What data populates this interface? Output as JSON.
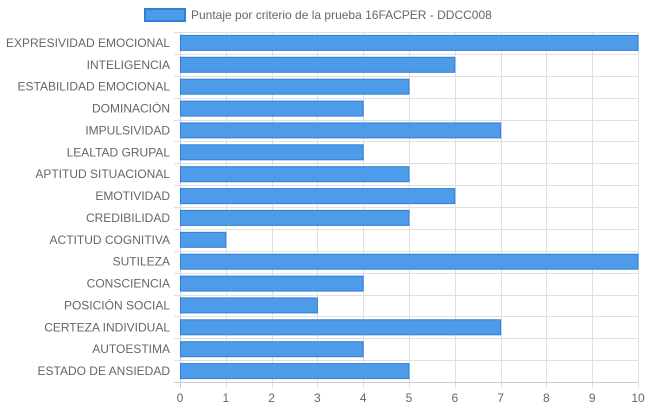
{
  "chart_data": {
    "type": "bar",
    "orientation": "horizontal",
    "title": "",
    "xlabel": "",
    "ylabel": "",
    "xlim": [
      0,
      10
    ],
    "x_ticks": [
      0,
      1,
      2,
      3,
      4,
      5,
      6,
      7,
      8,
      9,
      10
    ],
    "grid": true,
    "legend_position": "top",
    "categories": [
      "EXPRESIVIDAD EMOCIONAL",
      "INTELIGENCIA",
      "ESTABILIDAD EMOCIONAL",
      "DOMINACIÓN",
      "IMPULSIVIDAD",
      "LEALTAD GRUPAL",
      "APTITUD SITUACIONAL",
      "EMOTIVIDAD",
      "CREDIBILIDAD",
      "ACTITUD COGNITIVA",
      "SUTILEZA",
      "CONSCIENCIA",
      "POSICIÓN SOCIAL",
      "CERTEZA INDIVIDUAL",
      "AUTOESTIMA",
      "ESTADO DE ANSIEDAD"
    ],
    "series": [
      {
        "name": "Puntaje por criterio de la prueba 16FACPER - DDCC008",
        "color": "#4e9be9",
        "border_color": "#2f7fd6",
        "values": [
          10,
          6,
          5,
          4,
          7,
          4,
          5,
          6,
          5,
          1,
          10,
          4,
          3,
          7,
          4,
          5
        ]
      }
    ]
  },
  "colors": {
    "grid": "#e0e0e0",
    "axis": "#cccccc",
    "text": "#666666"
  }
}
